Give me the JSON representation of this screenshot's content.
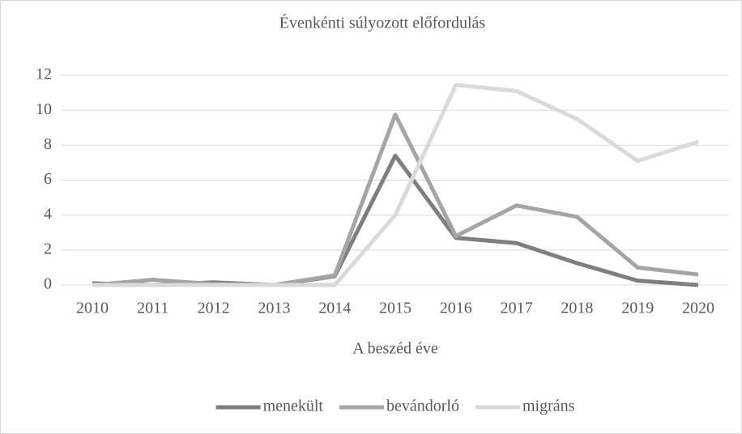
{
  "chart_data": {
    "type": "line",
    "title": "Évenkénti súlyozott előfordulás",
    "x_label": "A beszéd éve",
    "categories": [
      "2010",
      "2011",
      "2012",
      "2013",
      "2014",
      "2015",
      "2016",
      "2017",
      "2018",
      "2019",
      "2020"
    ],
    "series": [
      {
        "name": "menekült",
        "color": "#7f7f7f",
        "values": [
          0.1,
          0.0,
          0.15,
          0.0,
          0.5,
          7.4,
          2.7,
          2.4,
          1.25,
          0.25,
          0.0
        ]
      },
      {
        "name": "bevándorló",
        "color": "#a5a5a5",
        "values": [
          0.0,
          0.3,
          0.05,
          0.0,
          0.55,
          9.75,
          2.8,
          4.55,
          3.9,
          1.0,
          0.6
        ]
      },
      {
        "name": "migráns",
        "color": "#dadada",
        "values": [
          0.0,
          0.0,
          0.0,
          0.0,
          0.0,
          4.0,
          11.45,
          11.1,
          9.5,
          7.1,
          8.2
        ]
      }
    ],
    "ylim": [
      0,
      12
    ],
    "yticks": [
      0,
      2,
      4,
      6,
      8,
      10,
      12
    ],
    "grid": true,
    "legend": "bottom"
  }
}
